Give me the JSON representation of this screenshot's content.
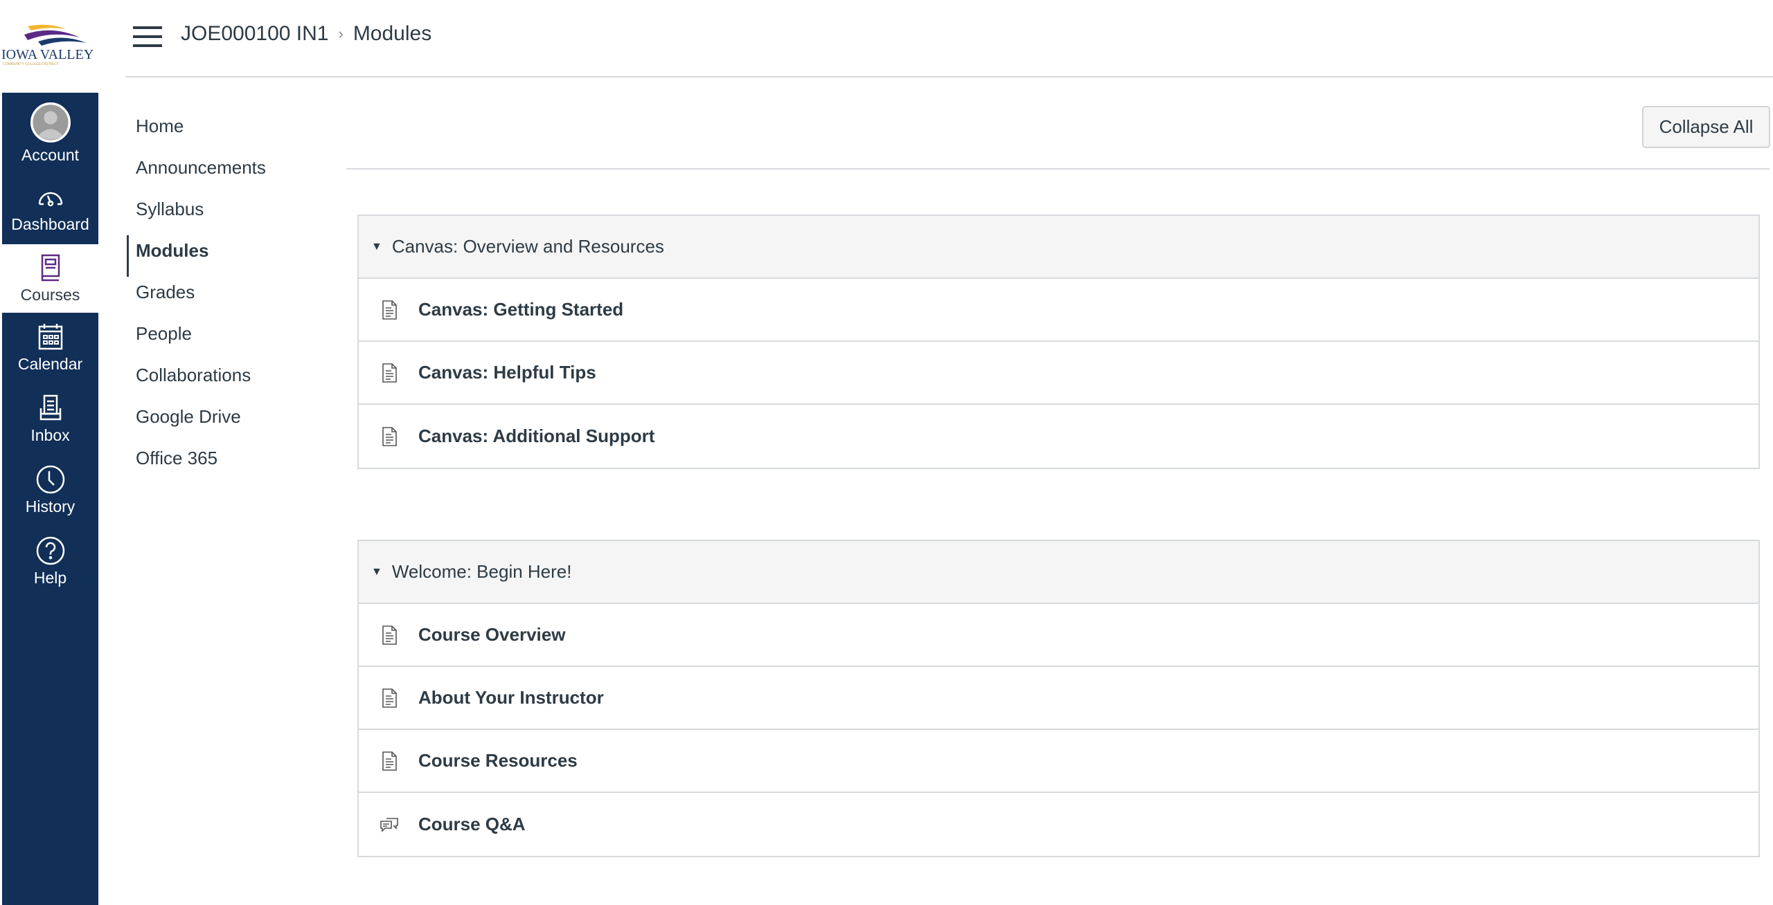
{
  "logo": {
    "text": "IOWA VALLEY",
    "subtext": "COMMUNITY COLLEGE DISTRICT",
    "colors": [
      "#f2b630",
      "#5b2a86",
      "#1b3a6b"
    ]
  },
  "global_nav": {
    "items": [
      {
        "label": "Account",
        "icon": "avatar-icon"
      },
      {
        "label": "Dashboard",
        "icon": "dashboard-icon"
      },
      {
        "label": "Courses",
        "icon": "courses-icon",
        "active": true
      },
      {
        "label": "Calendar",
        "icon": "calendar-icon"
      },
      {
        "label": "Inbox",
        "icon": "inbox-icon"
      },
      {
        "label": "History",
        "icon": "clock-icon"
      },
      {
        "label": "Help",
        "icon": "help-icon"
      }
    ],
    "bg": "#112f57"
  },
  "breadcrumb": {
    "course": "JOE000100 IN1",
    "separator": "›",
    "page": "Modules"
  },
  "course_nav": {
    "items": [
      "Home",
      "Announcements",
      "Syllabus",
      "Modules",
      "Grades",
      "People",
      "Collaborations",
      "Google Drive",
      "Office 365"
    ],
    "active": "Modules"
  },
  "toolbar": {
    "collapse_all": "Collapse All"
  },
  "modules": [
    {
      "title": "Canvas: Overview and Resources",
      "items": [
        {
          "label": "Canvas: Getting Started",
          "icon": "page-icon"
        },
        {
          "label": "Canvas: Helpful Tips",
          "icon": "page-icon"
        },
        {
          "label": "Canvas: Additional Support",
          "icon": "page-icon"
        }
      ]
    },
    {
      "title": "Welcome: Begin Here!",
      "items": [
        {
          "label": "Course Overview",
          "icon": "page-icon"
        },
        {
          "label": "About Your Instructor",
          "icon": "page-icon"
        },
        {
          "label": "Course Resources",
          "icon": "page-icon"
        },
        {
          "label": "Course Q&A",
          "icon": "discussion-icon"
        }
      ]
    }
  ]
}
